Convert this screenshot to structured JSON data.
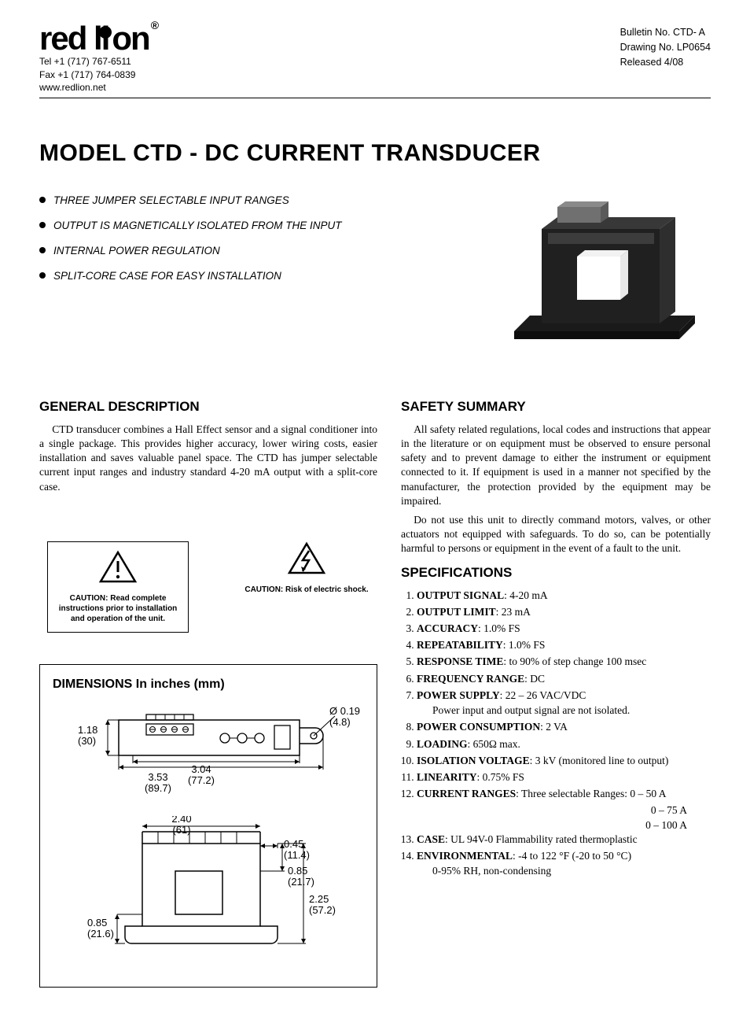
{
  "header": {
    "logo_text": "red lion",
    "tel": "Tel +1 (717) 767-6511",
    "fax": "Fax +1 (717) 764-0839",
    "web": "www.redlion.net",
    "bulletin": "Bulletin No.  CTD- A",
    "drawing": "Drawing No.  LP0654",
    "released": "Released  4/08"
  },
  "title": "MODEL CTD - DC CURRENT TRANSDUCER",
  "features": [
    "THREE JUMPER SELECTABLE INPUT RANGES",
    "OUTPUT IS MAGNETICALLY ISOLATED FROM THE INPUT",
    "INTERNAL POWER REGULATION",
    "SPLIT-CORE CASE FOR EASY INSTALLATION"
  ],
  "general": {
    "heading": "GENERAL DESCRIPTION",
    "body": "CTD transducer combines a Hall Effect sensor and a signal conditioner into a single package. This provides higher accuracy, lower wiring costs, easier installation and saves valuable panel space. The CTD has jumper selectable current input ranges and industry standard 4-20 mA output with a split-core case."
  },
  "caution1": "CAUTION: Read complete instructions prior to installation and operation of the unit.",
  "caution2": "CAUTION: Risk of electric shock.",
  "dimensions_heading": "DIMENSIONS  In inches (mm)",
  "dims": {
    "h_top": "1.18",
    "h_top_mm": "(30)",
    "dia": "Ø 0.19",
    "dia_mm": "(4.8)",
    "w_outer": "3.53",
    "w_outer_mm": "(89.7)",
    "w_inner": "3.04",
    "w_inner_mm": "(77.2)",
    "w_body": "2.40",
    "w_body_mm": "(61)",
    "w_lip": "0.45",
    "w_lip_mm": "(11.4)",
    "h_upper": "0.85",
    "h_upper_mm": "(21.7)",
    "h_total": "2.25",
    "h_total_mm": "(57.2)",
    "h_base": "0.85",
    "h_base_mm": "(21.6)"
  },
  "safety": {
    "heading": "SAFETY SUMMARY",
    "p1": "All safety related regulations, local codes and instructions that appear in the literature or on equipment must be observed to ensure personal safety and to prevent damage to either the instrument or equipment connected to it. If equipment is used in a manner not specified by the manufacturer, the protection provided by the equipment may be impaired.",
    "p2": "Do not use this unit to directly command motors, valves, or other actuators not equipped with safeguards. To do so, can be potentially harmful to persons or equipment in the event of a fault to the unit."
  },
  "specs_heading": "SPECIFICATIONS",
  "specs": [
    {
      "label": "OUTPUT SIGNAL",
      "value": ": 4-20 mA"
    },
    {
      "label": "OUTPUT LIMIT",
      "value": ": 23 mA"
    },
    {
      "label": "ACCURACY",
      "value": ": 1.0% FS"
    },
    {
      "label": "REPEATABILITY",
      "value": ": 1.0% FS"
    },
    {
      "label": "RESPONSE TIME",
      "value": ": to 90% of step change 100 msec"
    },
    {
      "label": "FREQUENCY RANGE",
      "value": ": DC"
    },
    {
      "label": "POWER SUPPLY",
      "value": ": 22 – 26 VAC/VDC",
      "sub": "Power input and output signal are not isolated."
    },
    {
      "label": "POWER CONSUMPTION",
      "value": ": 2 VA"
    },
    {
      "label": "LOADING",
      "value": ": 650Ω max."
    },
    {
      "label": "ISOLATION VOLTAGE",
      "value": ": 3 kV (monitored line to output)"
    },
    {
      "label": "LINEARITY",
      "value": ": 0.75% FS"
    },
    {
      "label": "CURRENT RANGES",
      "value": ": Three selectable Ranges: 0 – 50 A",
      "extra": [
        "0 – 75 A",
        "0 – 100 A"
      ]
    },
    {
      "label": "CASE",
      "value": ": UL 94V-0 Flammability rated thermoplastic"
    },
    {
      "label": "ENVIRONMENTAL",
      "value": ": -4 to 122 °F (-20 to 50 °C)",
      "sub": "0-95% RH, non-condensing"
    }
  ]
}
